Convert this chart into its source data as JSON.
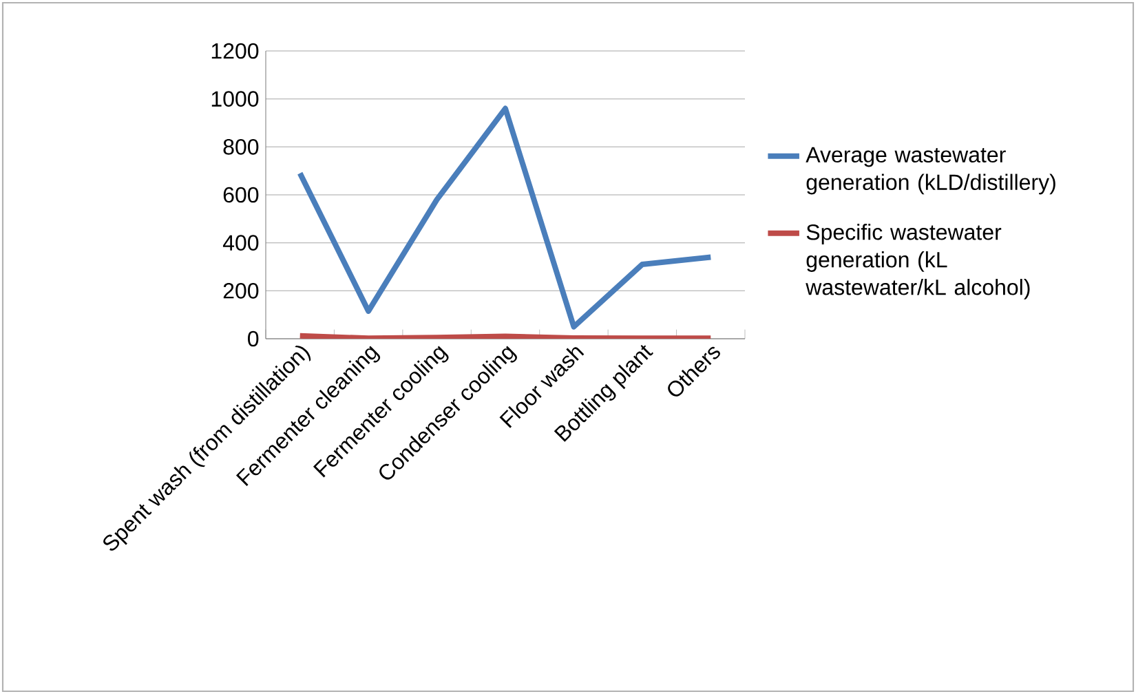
{
  "chart_data": {
    "type": "line",
    "categories": [
      "Spent wash (from distillation)",
      "Fermenter cleaning",
      "Fermenter cooling",
      "Condenser cooling",
      "Floor wash",
      "Bottling plant",
      "Others"
    ],
    "series": [
      {
        "name": "Average wastewater generation (kLD/distillery)",
        "color": "#4a7ebb",
        "values": [
          690,
          115,
          580,
          960,
          50,
          310,
          340
        ]
      },
      {
        "name": "Specific wastewater generation (kL wastewater/kL alcohol)",
        "color": "#be4b48",
        "values": [
          12,
          2,
          5,
          10,
          3,
          2,
          2
        ]
      }
    ],
    "ylim": [
      0,
      1200
    ],
    "yticks": [
      0,
      200,
      400,
      600,
      800,
      1000,
      1200
    ],
    "grid": "y",
    "legend": "right",
    "marker": "none",
    "line_style": "solid"
  }
}
